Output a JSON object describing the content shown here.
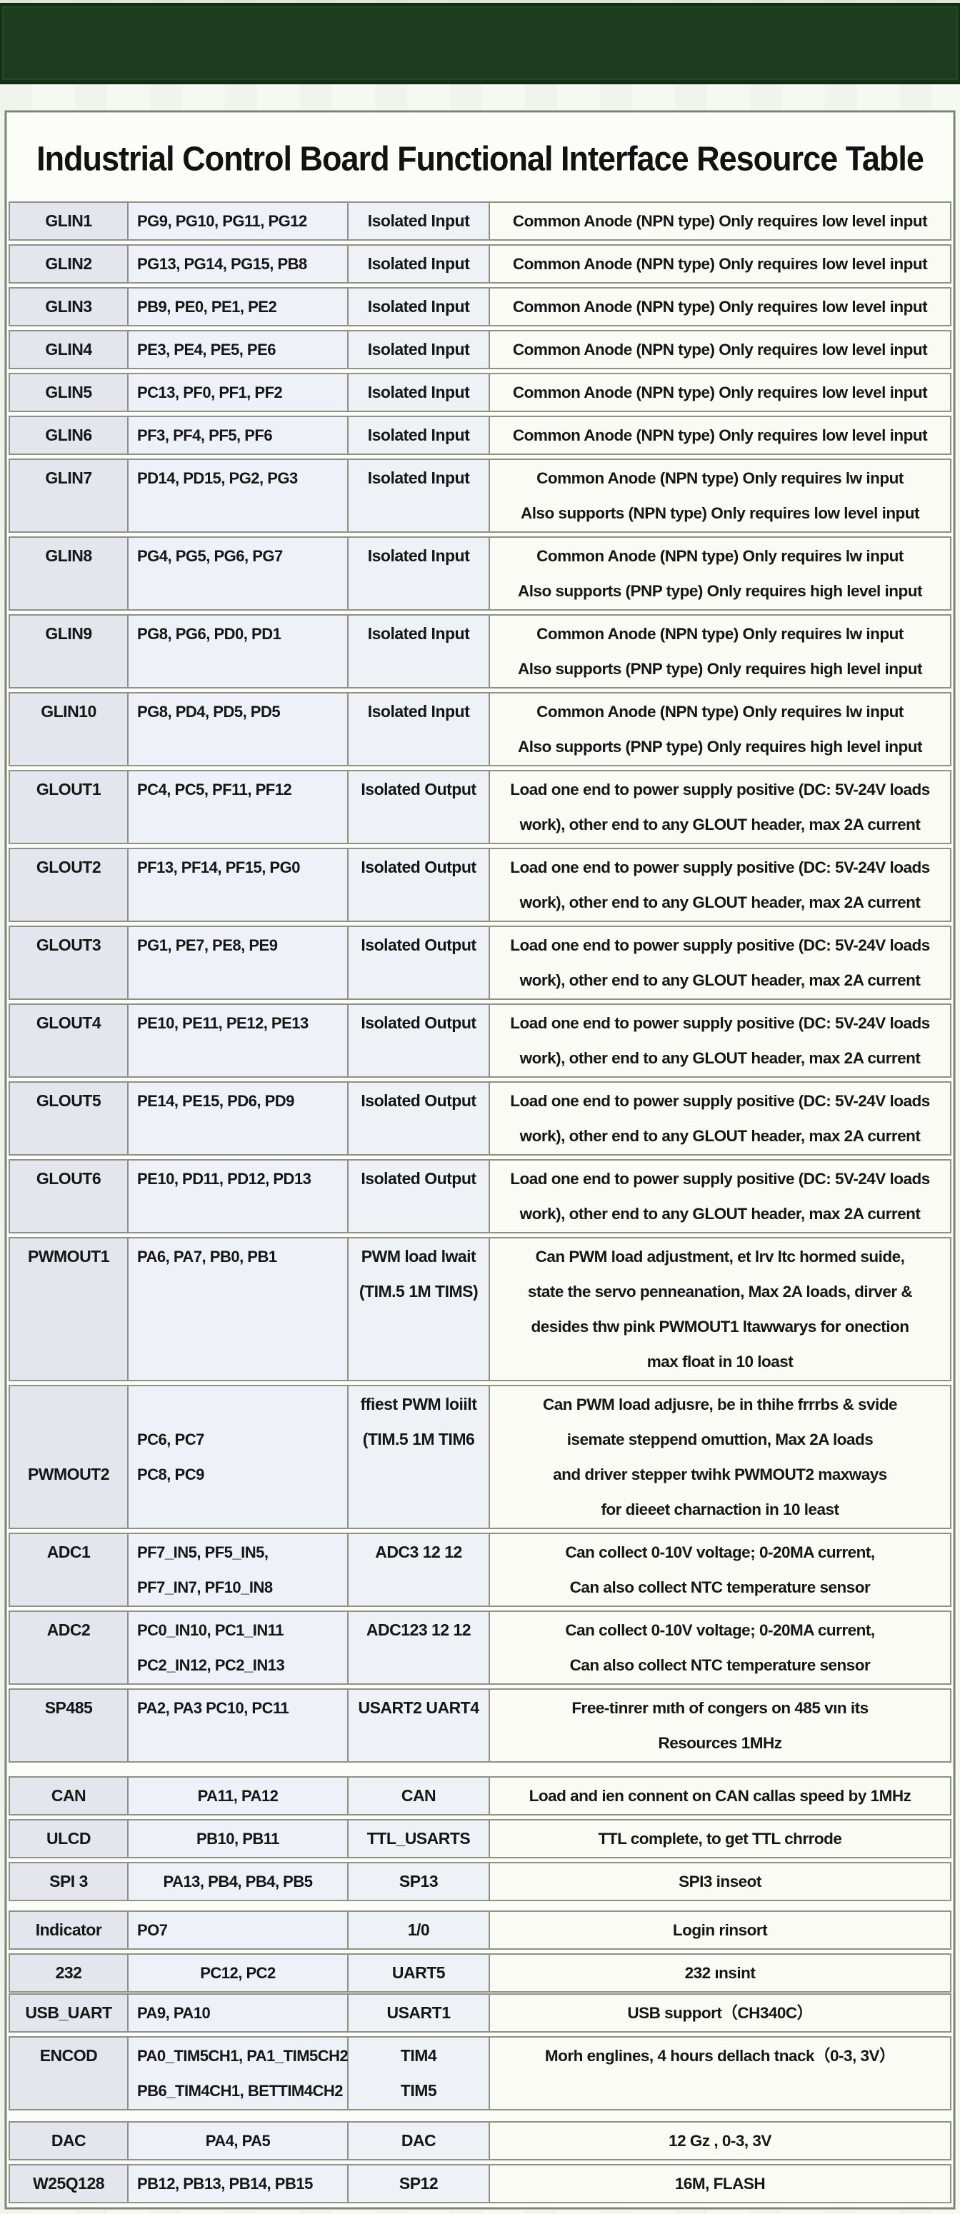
{
  "page": {
    "title": "Industrial Control Board Functional Interface Resource Table"
  },
  "colors": {
    "banner_green": "#1d3b1d",
    "table_border_gray": "#8f9187",
    "row_label_bg": "#e4e5ed",
    "pins_bg": "#eef1f8",
    "peripheral_bg": "#eef2f7",
    "description_bg": "#fbfbf5"
  },
  "table": {
    "rows": [
      {
        "id": [
          "GLIN1"
        ],
        "pins": [
          "PG9, PG10, PG11, PG12"
        ],
        "type": [
          "Isolated Input"
        ],
        "desc": [
          "Common Anode (NPN type) Only requires low level input"
        ]
      },
      {
        "id": [
          "GLIN2"
        ],
        "pins": [
          "PG13, PG14, PG15, PB8"
        ],
        "type": [
          "Isolated Input"
        ],
        "desc": [
          "Common Anode (NPN type) Only requires low level input"
        ]
      },
      {
        "id": [
          "GLIN3"
        ],
        "pins": [
          "PB9, PE0, PE1, PE2"
        ],
        "type": [
          "Isolated Input"
        ],
        "desc": [
          "Common Anode (NPN type) Only requires low level input"
        ]
      },
      {
        "id": [
          "GLIN4"
        ],
        "pins": [
          "PE3, PE4, PE5, PE6"
        ],
        "type": [
          "Isolated Input"
        ],
        "desc": [
          "Common Anode (NPN type) Only requires low level input"
        ]
      },
      {
        "id": [
          "GLIN5"
        ],
        "pins": [
          "PC13, PF0, PF1, PF2"
        ],
        "type": [
          "Isolated Input"
        ],
        "desc": [
          "Common Anode (NPN type) Only requires low level input"
        ]
      },
      {
        "id": [
          "GLIN6"
        ],
        "pins": [
          "PF3, PF4, PF5, PF6"
        ],
        "type": [
          "Isolated Input"
        ],
        "desc": [
          "Common Anode (NPN type) Only requires low level input"
        ]
      },
      {
        "id": [
          "GLIN7",
          ""
        ],
        "pins": [
          "PD14, PD15, PG2, PG3",
          ""
        ],
        "type": [
          "Isolated Input",
          ""
        ],
        "desc": [
          "Common Anode (NPN type) Only requires lw input",
          "Also supports (NPN type) Only requires low level input"
        ]
      },
      {
        "id": [
          "GLIN8",
          ""
        ],
        "pins": [
          "PG4, PG5, PG6, PG7",
          ""
        ],
        "type": [
          "Isolated Input",
          ""
        ],
        "desc": [
          "Common Anode (NPN type) Only requires lw input",
          "Also supports (PNP type) Only requires high level input"
        ]
      },
      {
        "id": [
          "GLIN9",
          ""
        ],
        "pins": [
          "PG8, PG6, PD0, PD1",
          ""
        ],
        "type": [
          "Isolated Input",
          ""
        ],
        "desc": [
          "Common Anode (NPN type) Only requires lw input",
          "Also supports (PNP type) Only requires high level input"
        ]
      },
      {
        "id": [
          "GLIN10",
          ""
        ],
        "pins": [
          "PG8, PD4, PD5, PD5",
          ""
        ],
        "type": [
          "Isolated Input",
          ""
        ],
        "desc": [
          "Common Anode (NPN type) Only requires lw input",
          "Also supports (PNP type) Only requires high level input"
        ]
      },
      {
        "id": [
          "GLOUT1",
          ""
        ],
        "pins": [
          "PC4, PC5, PF11, PF12",
          ""
        ],
        "type": [
          "Isolated Output",
          ""
        ],
        "desc": [
          "Load one end to power supply positive (DC: 5V-24V loads",
          "work), other end to any GLOUT header, max 2A current"
        ]
      },
      {
        "id": [
          "GLOUT2",
          ""
        ],
        "pins": [
          "PF13, PF14, PF15, PG0",
          ""
        ],
        "type": [
          "Isolated Output",
          ""
        ],
        "desc": [
          "Load one end to power supply positive (DC: 5V-24V loads",
          "work), other end to any GLOUT header, max 2A current"
        ]
      },
      {
        "id": [
          "GLOUT3",
          ""
        ],
        "pins": [
          "PG1, PE7, PE8, PE9",
          ""
        ],
        "type": [
          "Isolated Output",
          ""
        ],
        "desc": [
          "Load one end to power supply positive (DC: 5V-24V loads",
          "work), other end to any GLOUT header, max 2A current"
        ]
      },
      {
        "id": [
          "GLOUT4",
          ""
        ],
        "pins": [
          "PE10, PE11, PE12, PE13",
          ""
        ],
        "type": [
          "Isolated Output",
          ""
        ],
        "desc": [
          "Load one end to power supply positive (DC: 5V-24V loads",
          "work), other end to any GLOUT header, max 2A current"
        ]
      },
      {
        "id": [
          "GLOUT5",
          ""
        ],
        "pins": [
          "PE14, PE15, PD6, PD9",
          ""
        ],
        "type": [
          "Isolated Output",
          ""
        ],
        "desc": [
          "Load one end to power supply positive (DC: 5V-24V loads",
          "work), other end to any GLOUT header, max 2A current"
        ]
      },
      {
        "id": [
          "GLOUT6",
          ""
        ],
        "pins": [
          "PE10, PD11, PD12, PD13",
          ""
        ],
        "type": [
          "Isolated Output",
          ""
        ],
        "desc": [
          "Load one end to power supply positive (DC: 5V-24V loads",
          "work), other end to any GLOUT header, max 2A current"
        ]
      },
      {
        "id": [
          "PWMOUT1",
          "",
          "",
          ""
        ],
        "pins": [
          "PA6, PA7, PB0, PB1",
          "",
          "",
          ""
        ],
        "type": [
          "PWM load lwait",
          "(TIM.5 1M TIMS)",
          "",
          ""
        ],
        "desc": [
          "Can PWM load adjustment, et lrv ltc hormed suide,",
          "state the servo penneanation, Max 2A loads, dirver &",
          "desides thw pink PWMOUT1 ltawwarys for onection",
          "max float in 10 loast"
        ]
      },
      {
        "id": [
          "",
          "",
          "PWMOUT2",
          ""
        ],
        "pins": [
          "",
          "PC6, PC7",
          "PC8, PC9",
          ""
        ],
        "type": [
          "ffiest PWM loiilt",
          "(TIM.5 1M TIM6",
          "",
          ""
        ],
        "desc": [
          "Can PWM load adjusre, be in thihe frrrbs & svide",
          "isemate steppend omuttion, Max 2A loads",
          "and driver stepper twihk PWMOUT2 maxways",
          "for dieeet charnaction in 10 least"
        ]
      },
      {
        "id": [
          "ADC1",
          ""
        ],
        "pins": [
          "PF7_IN5, PF5_IN5,",
          "PF7_IN7, PF10_IN8"
        ],
        "type": [
          "ADC3  12 12",
          ""
        ],
        "desc": [
          "Can collect 0-10V voltage; 0-20MA current,",
          "Can also collect NTC temperature sensor"
        ]
      },
      {
        "id": [
          "ADC2",
          ""
        ],
        "pins": [
          "PC0_IN10, PC1_IN11",
          "PC2_IN12, PC2_IN13"
        ],
        "type": [
          "ADC123  12 12",
          ""
        ],
        "desc": [
          "Can collect 0-10V voltage; 0-20MA current,",
          "Can also collect NTC temperature sensor"
        ]
      },
      {
        "id": [
          "SP485",
          ""
        ],
        "pins": [
          "PA2, PA3   PC10, PC11",
          ""
        ],
        "type": [
          "USART2  UART4",
          ""
        ],
        "desc": [
          "Free-tinrer mıth of congers on 485 vın its",
          "Resources 1MHz"
        ]
      },
      {
        "id": [
          "CAN"
        ],
        "pins": [
          "PA11, PA12"
        ],
        "type": [
          "CAN"
        ],
        "desc": [
          "Load and ien connent on CAN callas speed by 1MHz"
        ]
      },
      {
        "id": [
          "ULCD"
        ],
        "pins": [
          "PB10, PB11"
        ],
        "type": [
          "TTL_USARTS"
        ],
        "desc": [
          "TTL complete, to get TTL chrrode"
        ]
      },
      {
        "id": [
          "SPI 3"
        ],
        "pins": [
          "PA13, PB4, PB4, PB5"
        ],
        "type": [
          "SP13"
        ],
        "desc": [
          "SPI3 inseot"
        ]
      },
      {
        "id": [
          "Indicator"
        ],
        "pins": [
          "PO7"
        ],
        "type": [
          "1/0"
        ],
        "desc": [
          "Login rinsort"
        ]
      },
      {
        "id": [
          "232"
        ],
        "pins": [
          "PC12, PC2"
        ],
        "type": [
          "UART5"
        ],
        "desc": [
          "232 ınsint"
        ]
      },
      {
        "id": [
          "USB_UART"
        ],
        "pins": [
          "PA9, PA10"
        ],
        "type": [
          "USART1"
        ],
        "desc": [
          "USB support（CH340C）"
        ]
      },
      {
        "id": [
          "ENCOD",
          ""
        ],
        "pins": [
          "PA0_TIM5CH1, PA1_TIM5CH2",
          "PB6_TIM4CH1, BETTIM4CH2"
        ],
        "type": [
          "TIM4",
          "TIM5"
        ],
        "desc": [
          "Morh englines, 4 hours dellach tnack（0-3, 3V）",
          ""
        ]
      },
      {
        "id": [
          "DAC"
        ],
        "pins": [
          "PA4, PA5"
        ],
        "type": [
          "DAC"
        ],
        "desc": [
          "12 Gz , 0-3, 3V"
        ]
      },
      {
        "id": [
          "W25Q128"
        ],
        "pins": [
          "PB12, PB13, PB14, PB15"
        ],
        "type": [
          "SP12"
        ],
        "desc": [
          "16M, FLASH"
        ]
      }
    ]
  }
}
